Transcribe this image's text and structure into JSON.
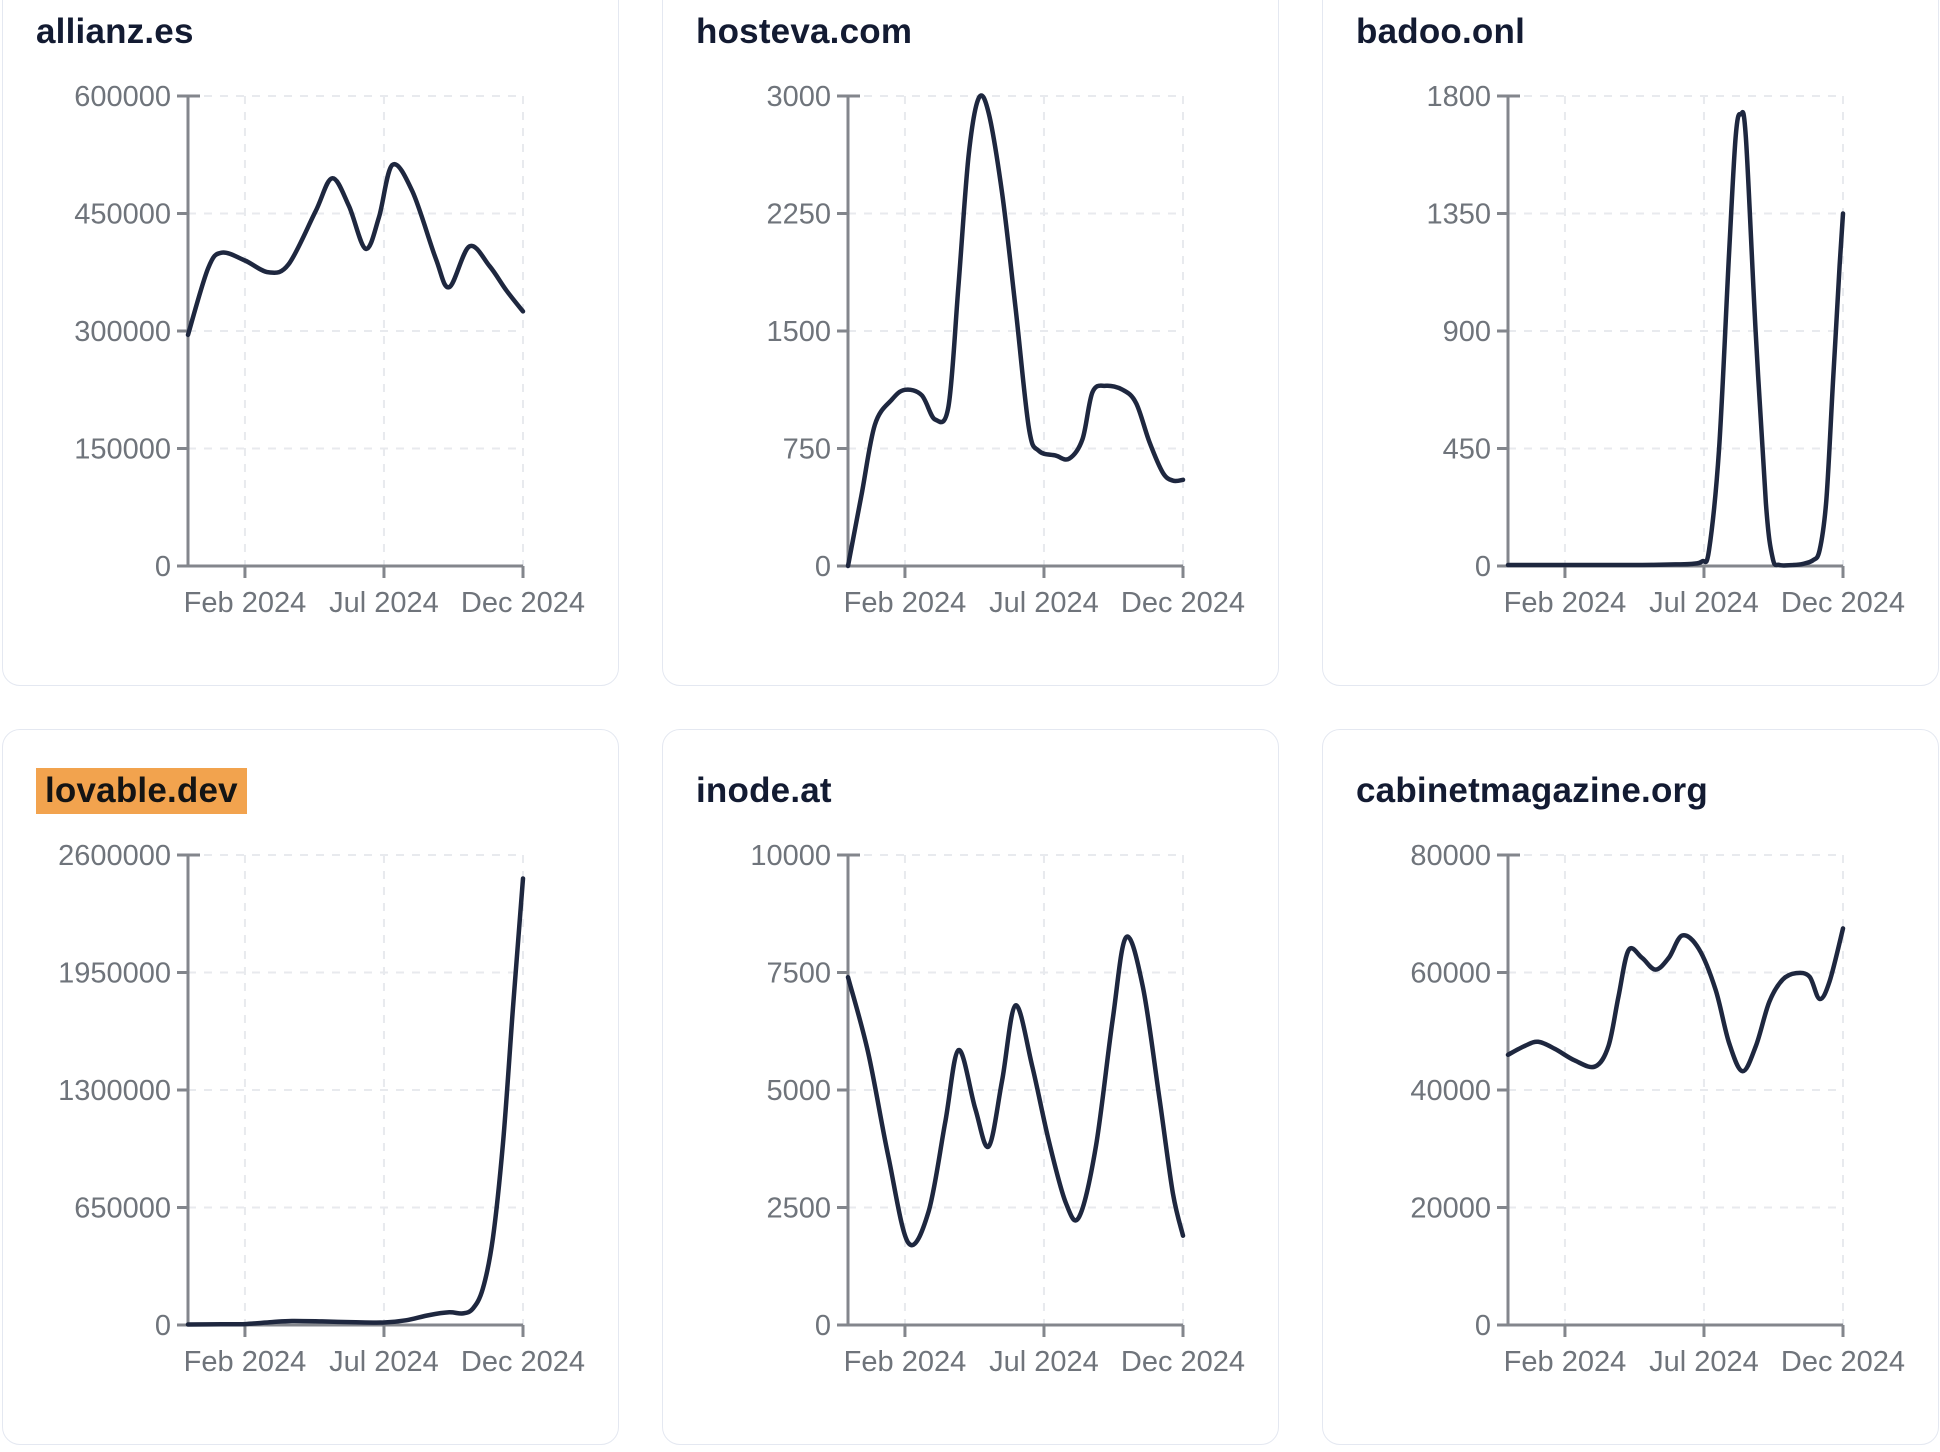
{
  "styles": {
    "page_background": "#ffffff",
    "card_background": "#ffffff",
    "card_border": "#e4e8f1",
    "title_color": "#131b32",
    "highlight_background": "#f2a34e",
    "highlight_text": "#141414",
    "line_color": "#1e273f",
    "tick_label_color": "#6f747b",
    "axis_color": "#83868c",
    "grid_color": "#e8eaee"
  },
  "chart_data": [
    {
      "type": "line",
      "title": "allianz.es",
      "highlighted": false,
      "ylim": [
        0,
        600000
      ],
      "y_ticks": [
        0,
        150000,
        300000,
        450000,
        600000
      ],
      "x_ticks": [
        {
          "label": "Feb 2024",
          "f": 0.17
        },
        {
          "label": "Jul 2024",
          "f": 0.585
        },
        {
          "label": "Dec 2024",
          "f": 1.0
        }
      ],
      "points": [
        [
          0.0,
          295000
        ],
        [
          0.06,
          380000
        ],
        [
          0.1,
          400000
        ],
        [
          0.17,
          390000
        ],
        [
          0.24,
          375000
        ],
        [
          0.3,
          385000
        ],
        [
          0.38,
          452000
        ],
        [
          0.43,
          495000
        ],
        [
          0.48,
          460000
        ],
        [
          0.53,
          405000
        ],
        [
          0.57,
          445000
        ],
        [
          0.61,
          512000
        ],
        [
          0.67,
          478000
        ],
        [
          0.74,
          392000
        ],
        [
          0.78,
          356000
        ],
        [
          0.84,
          408000
        ],
        [
          0.9,
          383000
        ],
        [
          0.95,
          352000
        ],
        [
          1.0,
          325000
        ]
      ]
    },
    {
      "type": "line",
      "title": "hosteva.com",
      "highlighted": false,
      "ylim": [
        0,
        3000
      ],
      "y_ticks": [
        0,
        750,
        1500,
        2250,
        3000
      ],
      "x_ticks": [
        {
          "label": "Feb 2024",
          "f": 0.17
        },
        {
          "label": "Jul 2024",
          "f": 0.585
        },
        {
          "label": "Dec 2024",
          "f": 1.0
        }
      ],
      "points": [
        [
          0.0,
          0
        ],
        [
          0.04,
          450
        ],
        [
          0.08,
          900
        ],
        [
          0.13,
          1060
        ],
        [
          0.17,
          1125
        ],
        [
          0.22,
          1090
        ],
        [
          0.26,
          935
        ],
        [
          0.3,
          1020
        ],
        [
          0.33,
          1800
        ],
        [
          0.36,
          2620
        ],
        [
          0.39,
          2985
        ],
        [
          0.42,
          2890
        ],
        [
          0.46,
          2380
        ],
        [
          0.5,
          1650
        ],
        [
          0.54,
          880
        ],
        [
          0.57,
          735
        ],
        [
          0.62,
          705
        ],
        [
          0.66,
          685
        ],
        [
          0.7,
          810
        ],
        [
          0.73,
          1110
        ],
        [
          0.77,
          1150
        ],
        [
          0.82,
          1125
        ],
        [
          0.86,
          1040
        ],
        [
          0.9,
          790
        ],
        [
          0.94,
          595
        ],
        [
          0.97,
          545
        ],
        [
          1.0,
          550
        ]
      ]
    },
    {
      "type": "line",
      "title": "badoo.onl",
      "highlighted": false,
      "ylim": [
        0,
        1800
      ],
      "y_ticks": [
        0,
        450,
        900,
        1350,
        1800
      ],
      "x_ticks": [
        {
          "label": "Feb 2024",
          "f": 0.17
        },
        {
          "label": "Jul 2024",
          "f": 0.585
        },
        {
          "label": "Dec 2024",
          "f": 1.0
        }
      ],
      "points": [
        [
          0.0,
          4
        ],
        [
          0.1,
          4
        ],
        [
          0.2,
          4
        ],
        [
          0.3,
          4
        ],
        [
          0.4,
          4
        ],
        [
          0.5,
          6
        ],
        [
          0.55,
          8
        ],
        [
          0.58,
          18
        ],
        [
          0.6,
          60
        ],
        [
          0.63,
          450
        ],
        [
          0.66,
          1200
        ],
        [
          0.68,
          1650
        ],
        [
          0.695,
          1730
        ],
        [
          0.71,
          1640
        ],
        [
          0.74,
          880
        ],
        [
          0.77,
          240
        ],
        [
          0.79,
          30
        ],
        [
          0.81,
          4
        ],
        [
          0.85,
          4
        ],
        [
          0.88,
          8
        ],
        [
          0.91,
          22
        ],
        [
          0.93,
          60
        ],
        [
          0.95,
          250
        ],
        [
          0.97,
          700
        ],
        [
          0.99,
          1150
        ],
        [
          1.0,
          1350
        ]
      ]
    },
    {
      "type": "line",
      "title": "lovable.dev",
      "highlighted": true,
      "ylim": [
        0,
        2600000
      ],
      "y_ticks": [
        0,
        650000,
        1300000,
        1950000,
        2600000
      ],
      "x_ticks": [
        {
          "label": "Feb 2024",
          "f": 0.17
        },
        {
          "label": "Jul 2024",
          "f": 0.585
        },
        {
          "label": "Dec 2024",
          "f": 1.0
        }
      ],
      "points": [
        [
          0.0,
          3000
        ],
        [
          0.1,
          4000
        ],
        [
          0.17,
          5000
        ],
        [
          0.25,
          16000
        ],
        [
          0.31,
          22000
        ],
        [
          0.4,
          20000
        ],
        [
          0.5,
          15000
        ],
        [
          0.585,
          14000
        ],
        [
          0.65,
          26000
        ],
        [
          0.72,
          55000
        ],
        [
          0.78,
          70000
        ],
        [
          0.82,
          64000
        ],
        [
          0.85,
          90000
        ],
        [
          0.88,
          200000
        ],
        [
          0.91,
          480000
        ],
        [
          0.94,
          1000000
        ],
        [
          0.97,
          1750000
        ],
        [
          1.0,
          2470000
        ]
      ]
    },
    {
      "type": "line",
      "title": "inode.at",
      "highlighted": false,
      "ylim": [
        0,
        10000
      ],
      "y_ticks": [
        0,
        2500,
        5000,
        7500,
        10000
      ],
      "x_ticks": [
        {
          "label": "Feb 2024",
          "f": 0.17
        },
        {
          "label": "Jul 2024",
          "f": 0.585
        },
        {
          "label": "Dec 2024",
          "f": 1.0
        }
      ],
      "points": [
        [
          0.0,
          7400
        ],
        [
          0.06,
          5800
        ],
        [
          0.12,
          3600
        ],
        [
          0.18,
          1750
        ],
        [
          0.24,
          2400
        ],
        [
          0.29,
          4300
        ],
        [
          0.33,
          5850
        ],
        [
          0.38,
          4600
        ],
        [
          0.42,
          3800
        ],
        [
          0.46,
          5200
        ],
        [
          0.5,
          6800
        ],
        [
          0.55,
          5500
        ],
        [
          0.6,
          3900
        ],
        [
          0.65,
          2600
        ],
        [
          0.69,
          2300
        ],
        [
          0.74,
          3800
        ],
        [
          0.79,
          6500
        ],
        [
          0.83,
          8250
        ],
        [
          0.88,
          7200
        ],
        [
          0.93,
          4800
        ],
        [
          0.97,
          2800
        ],
        [
          1.0,
          1900
        ]
      ]
    },
    {
      "type": "line",
      "title": "cabinetmagazine.org",
      "highlighted": false,
      "ylim": [
        0,
        80000
      ],
      "y_ticks": [
        0,
        20000,
        40000,
        60000,
        80000
      ],
      "x_ticks": [
        {
          "label": "Feb 2024",
          "f": 0.17
        },
        {
          "label": "Jul 2024",
          "f": 0.585
        },
        {
          "label": "Dec 2024",
          "f": 1.0
        }
      ],
      "points": [
        [
          0.0,
          46000
        ],
        [
          0.05,
          47500
        ],
        [
          0.09,
          48200
        ],
        [
          0.14,
          47000
        ],
        [
          0.2,
          45000
        ],
        [
          0.26,
          44000
        ],
        [
          0.3,
          47500
        ],
        [
          0.33,
          56000
        ],
        [
          0.36,
          63800
        ],
        [
          0.4,
          62500
        ],
        [
          0.44,
          60500
        ],
        [
          0.48,
          62500
        ],
        [
          0.52,
          66300
        ],
        [
          0.57,
          64000
        ],
        [
          0.62,
          57000
        ],
        [
          0.66,
          48000
        ],
        [
          0.7,
          43200
        ],
        [
          0.74,
          47500
        ],
        [
          0.78,
          55000
        ],
        [
          0.82,
          58800
        ],
        [
          0.86,
          59900
        ],
        [
          0.9,
          59300
        ],
        [
          0.93,
          55500
        ],
        [
          0.96,
          58500
        ],
        [
          1.0,
          67500
        ]
      ]
    }
  ]
}
